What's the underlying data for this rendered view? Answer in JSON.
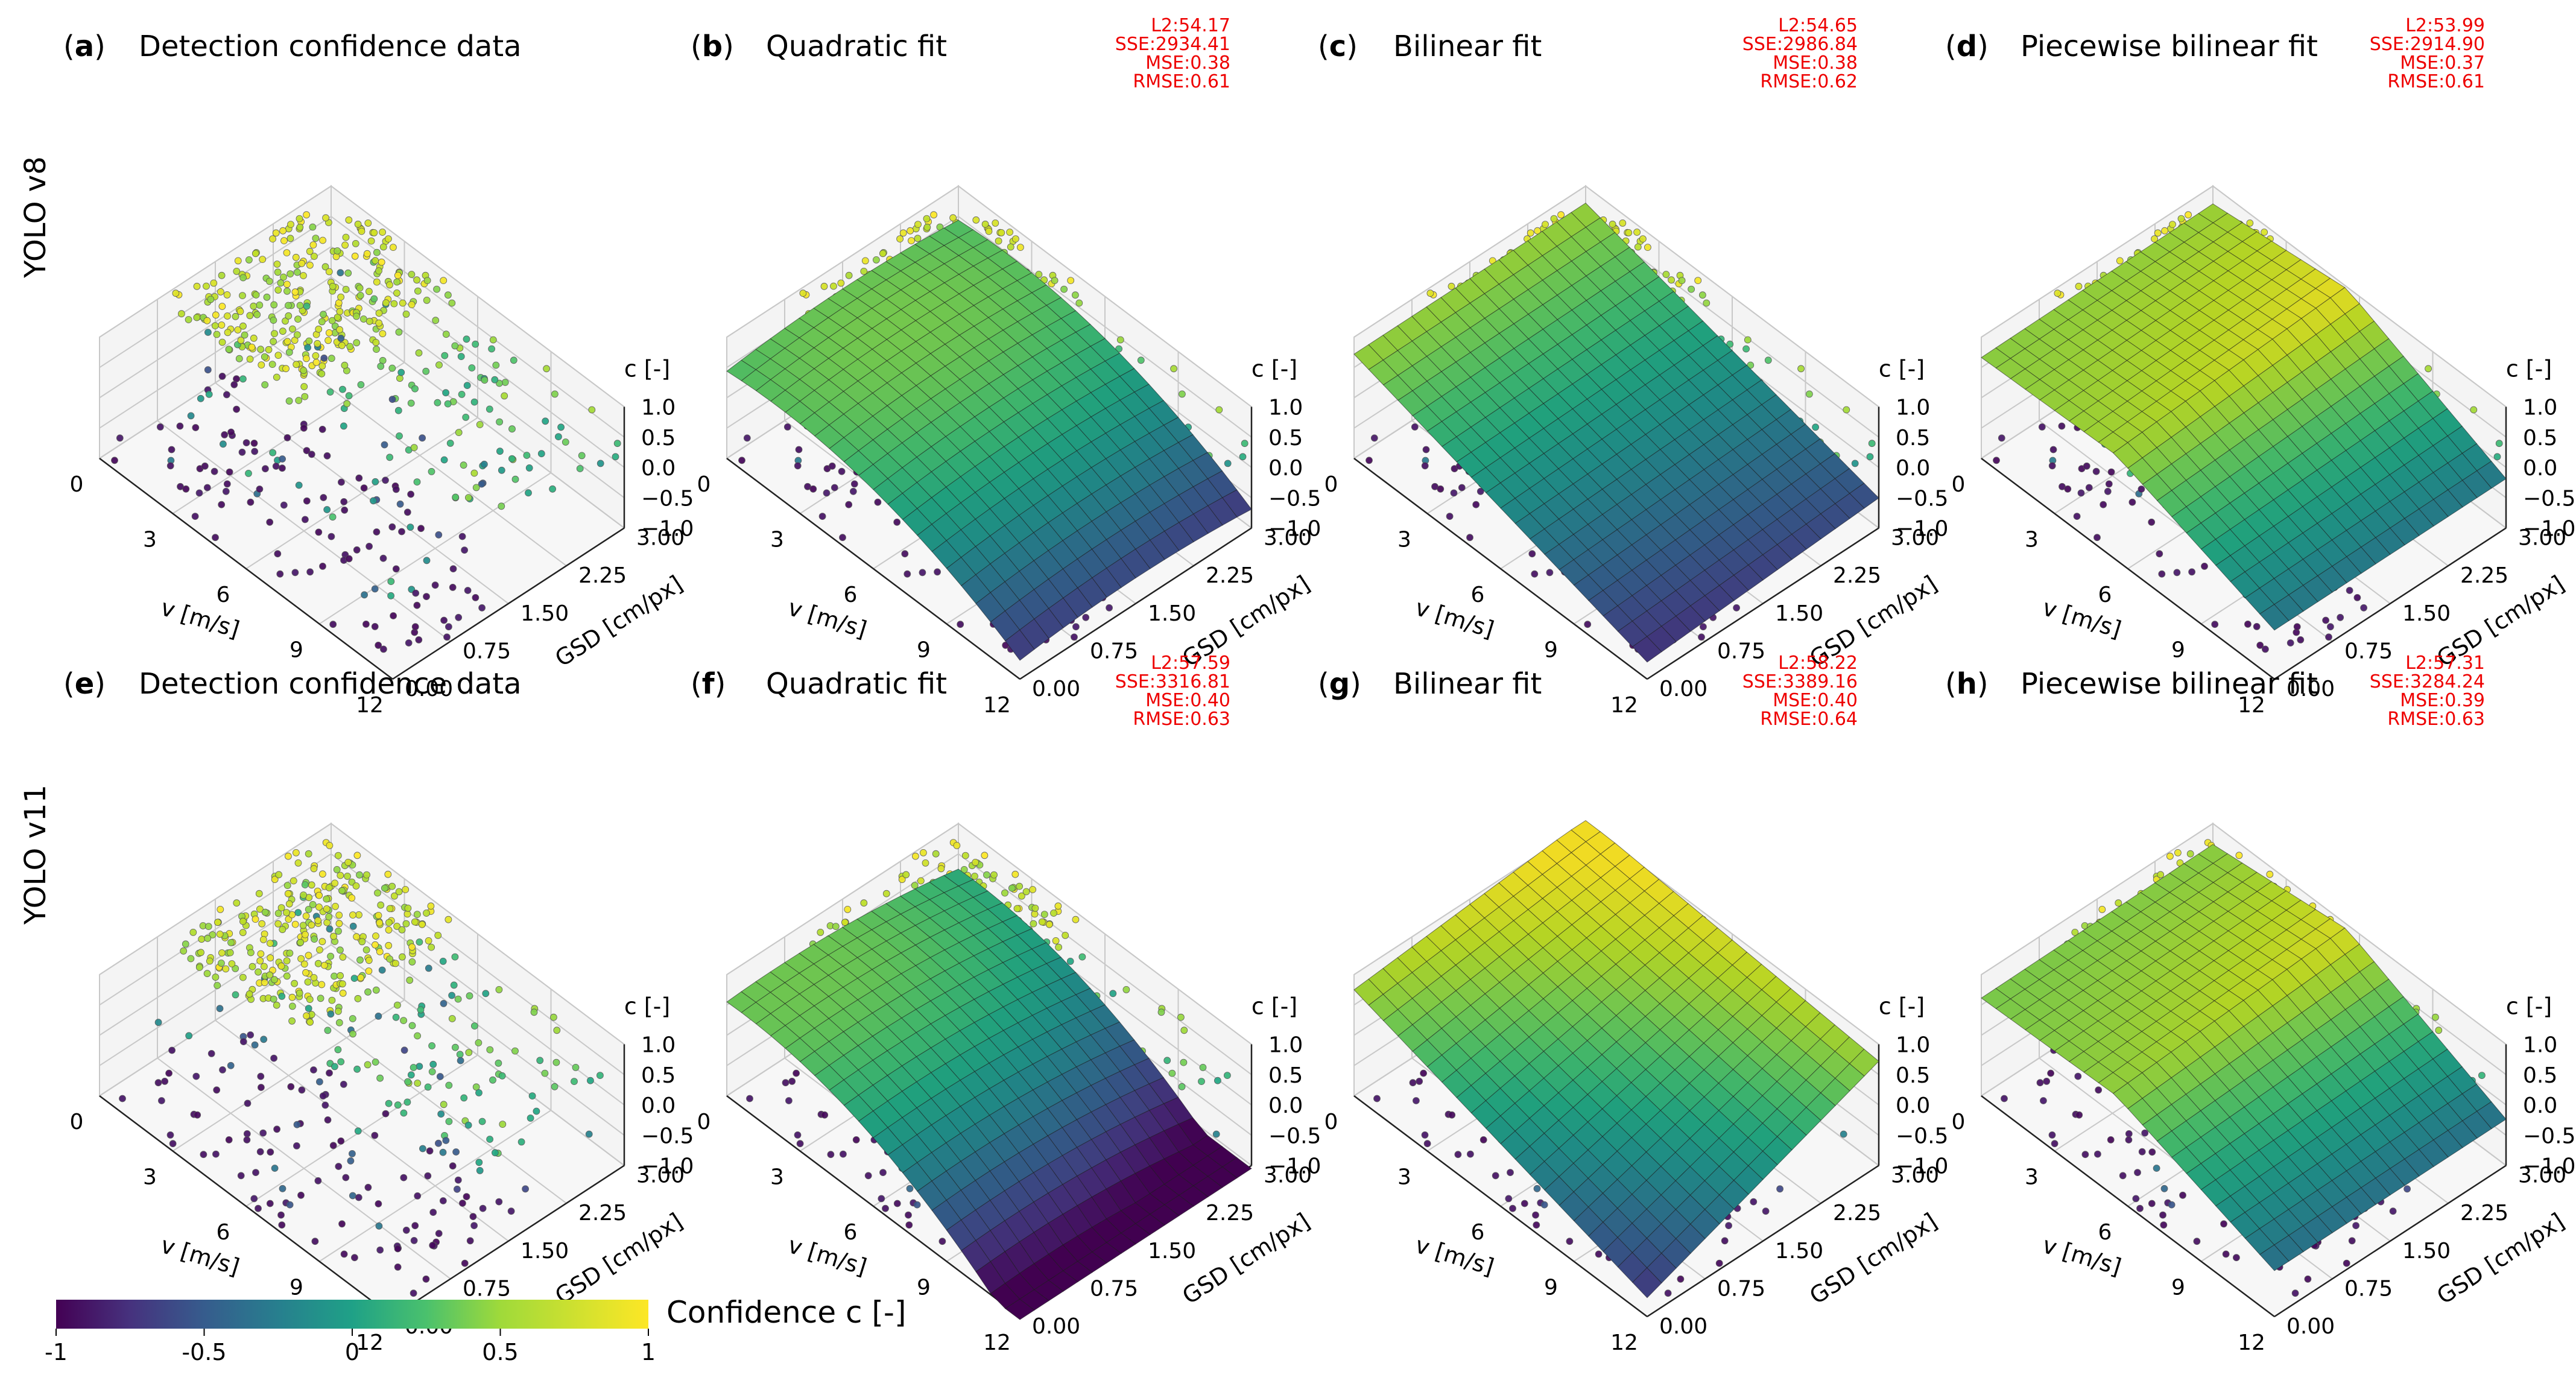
{
  "figure": {
    "colorbar": {
      "label": "Confidence c [-]",
      "ticks": [
        "-1",
        "-0.5",
        "0",
        "0.5",
        "1"
      ]
    },
    "row_labels": [
      "YOLO v8",
      "YOLO v11"
    ],
    "axis_labels": {
      "x": "v [m/s]",
      "y": "GSD [cm/px]",
      "z": "c [-]"
    },
    "x_ticks": [
      "0",
      "3",
      "6",
      "9",
      "12"
    ],
    "y_ticks": [
      "0.00",
      "0.75",
      "1.50",
      "2.25",
      "3.00"
    ],
    "z_ticks": [
      "1.0",
      "0.5",
      "0.0",
      "−0.5",
      "−1.0"
    ]
  },
  "chart_data": [
    {
      "type": "scatter",
      "panel_letter": "a",
      "title": "Detection confidence data",
      "row": "YOLO v8",
      "xlabel": "v [m/s]",
      "ylabel": "GSD [cm/px]",
      "zlabel": "c [-]",
      "xlim": [
        0,
        12
      ],
      "ylim": [
        0,
        3
      ],
      "zlim": [
        -1,
        1
      ],
      "stats": null
    },
    {
      "type": "scatter",
      "panel_letter": "b",
      "title": "Quadratic fit",
      "row": "YOLO v8",
      "xlabel": "v [m/s]",
      "ylabel": "GSD [cm/px]",
      "zlabel": "c [-]",
      "xlim": [
        0,
        12
      ],
      "ylim": [
        0,
        3
      ],
      "zlim": [
        -1,
        1
      ],
      "fit": "quadratic",
      "stats": {
        "L2": "L2:54.17",
        "SSE": "SSE:2934.41",
        "MSE": "MSE:0.38",
        "RMSE": "RMSE:0.61"
      }
    },
    {
      "type": "scatter",
      "panel_letter": "c",
      "title": "Bilinear fit",
      "row": "YOLO v8",
      "xlabel": "v [m/s]",
      "ylabel": "GSD [cm/px]",
      "zlabel": "c [-]",
      "xlim": [
        0,
        12
      ],
      "ylim": [
        0,
        3
      ],
      "zlim": [
        -1,
        1
      ],
      "fit": "bilinear",
      "stats": {
        "L2": "L2:54.65",
        "SSE": "SSE:2986.84",
        "MSE": "MSE:0.38",
        "RMSE": "RMSE:0.62"
      }
    },
    {
      "type": "scatter",
      "panel_letter": "d",
      "title": "Piecewise bilinear fit",
      "row": "YOLO v8",
      "xlabel": "v [m/s]",
      "ylabel": "GSD [cm/px]",
      "zlabel": "c [-]",
      "xlim": [
        0,
        12
      ],
      "ylim": [
        0,
        3
      ],
      "zlim": [
        -1,
        1
      ],
      "fit": "piecewise",
      "stats": {
        "L2": "L2:53.99",
        "SSE": "SSE:2914.90",
        "MSE": "MSE:0.37",
        "RMSE": "RMSE:0.61"
      }
    },
    {
      "type": "scatter",
      "panel_letter": "e",
      "title": "Detection confidence data",
      "row": "YOLO v11",
      "xlabel": "v [m/s]",
      "ylabel": "GSD [cm/px]",
      "zlabel": "c [-]",
      "xlim": [
        0,
        12
      ],
      "ylim": [
        0,
        3
      ],
      "zlim": [
        -1,
        1
      ],
      "stats": null
    },
    {
      "type": "scatter",
      "panel_letter": "f",
      "title": "Quadratic fit",
      "row": "YOLO v11",
      "xlabel": "v [m/s]",
      "ylabel": "GSD [cm/px]",
      "zlabel": "c [-]",
      "xlim": [
        0,
        12
      ],
      "ylim": [
        0,
        3
      ],
      "zlim": [
        -1,
        1
      ],
      "fit": "quadratic",
      "stats": {
        "L2": "L2:57.59",
        "SSE": "SSE:3316.81",
        "MSE": "MSE:0.40",
        "RMSE": "RMSE:0.63"
      }
    },
    {
      "type": "scatter",
      "panel_letter": "g",
      "title": "Bilinear fit",
      "row": "YOLO v11",
      "xlabel": "v [m/s]",
      "ylabel": "GSD [cm/px]",
      "zlabel": "c [-]",
      "xlim": [
        0,
        12
      ],
      "ylim": [
        0,
        3
      ],
      "zlim": [
        -1,
        1
      ],
      "fit": "bilinear",
      "stats": {
        "L2": "L2:58.22",
        "SSE": "SSE:3389.16",
        "MSE": "MSE:0.40",
        "RMSE": "RMSE:0.64"
      }
    },
    {
      "type": "scatter",
      "panel_letter": "h",
      "title": "Piecewise bilinear fit",
      "row": "YOLO v11",
      "xlabel": "v [m/s]",
      "ylabel": "GSD [cm/px]",
      "zlabel": "c [-]",
      "xlim": [
        0,
        12
      ],
      "ylim": [
        0,
        3
      ],
      "zlim": [
        -1,
        1
      ],
      "fit": "piecewise",
      "stats": {
        "L2": "L2:57.31",
        "SSE": "SSE:3284.24",
        "MSE": "MSE:0.39",
        "RMSE": "RMSE:0.63"
      }
    }
  ]
}
